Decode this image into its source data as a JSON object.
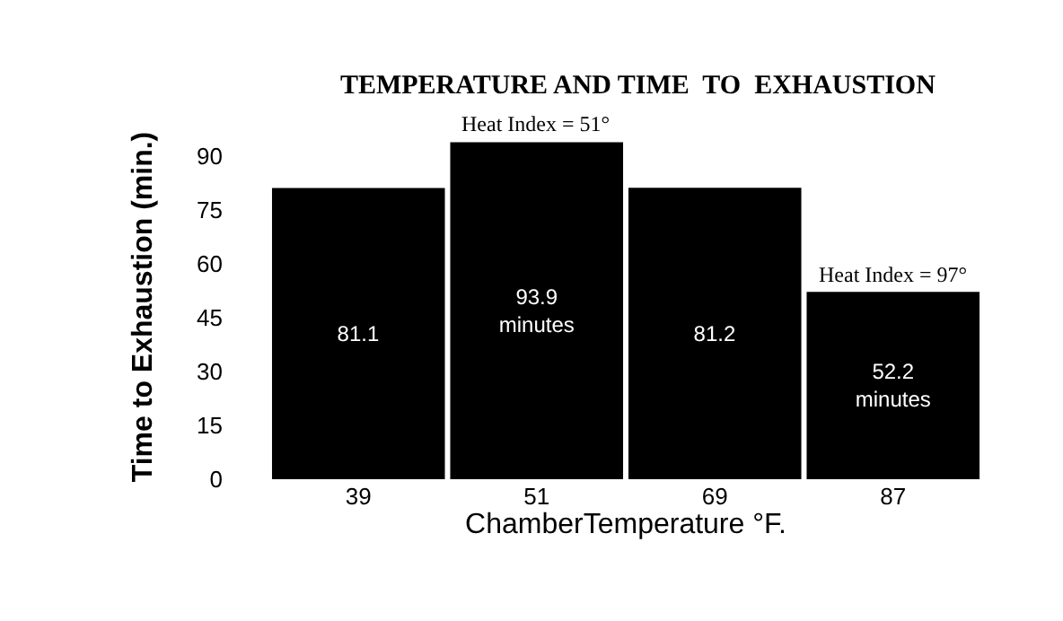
{
  "chart_data": {
    "type": "bar",
    "title": "TEMPERATURE AND TIME  TO  EXHAUSTION",
    "xlabel": "ChamberTemperature °F.",
    "ylabel": "Time to Exhaustion (min.)",
    "categories": [
      "39",
      "51",
      "69",
      "87"
    ],
    "values": [
      81.1,
      93.9,
      81.2,
      52.2
    ],
    "value_labels": [
      "81.1",
      "93.9\nminutes",
      "81.2",
      "52.2\nminutes"
    ],
    "color": "#000000",
    "ylim": [
      0,
      96
    ],
    "yticks": [
      0,
      15,
      30,
      45,
      60,
      75,
      90
    ],
    "annotations": [
      {
        "text": "Heat Index = 51°",
        "x": "51",
        "y": 93.9
      },
      {
        "text": "Heat Index = 97°",
        "x": "87",
        "y": 52.2
      }
    ]
  }
}
